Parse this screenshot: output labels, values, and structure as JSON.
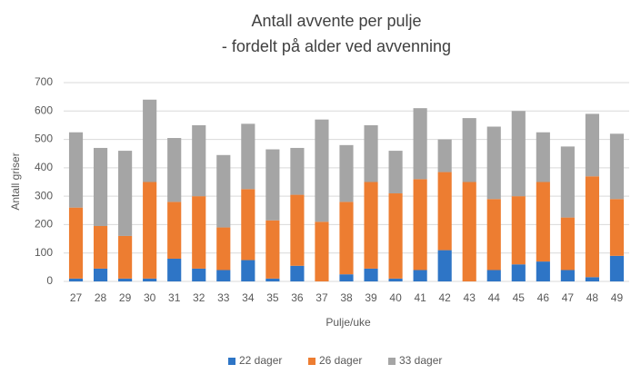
{
  "chart_data": {
    "type": "stacked_bar",
    "title": [
      "Antall avvente per pulje",
      "- fordelt på alder ved avvenning"
    ],
    "x_label": "Pulje/uke",
    "y_label": "Antall griser",
    "categories": [
      "27",
      "28",
      "29",
      "30",
      "31",
      "32",
      "33",
      "34",
      "35",
      "36",
      "37",
      "38",
      "39",
      "40",
      "41",
      "42",
      "43",
      "44",
      "45",
      "46",
      "47",
      "48",
      "49"
    ],
    "series": [
      {
        "name": "22 dager",
        "color": "#2e75c6",
        "values": [
          10,
          45,
          10,
          10,
          80,
          45,
          40,
          75,
          10,
          55,
          0,
          25,
          45,
          10,
          40,
          110,
          0,
          40,
          60,
          70,
          40,
          15,
          90
        ]
      },
      {
        "name": "26 dager",
        "color": "#ed7d31",
        "values": [
          250,
          150,
          150,
          340,
          200,
          255,
          150,
          250,
          205,
          250,
          210,
          255,
          305,
          300,
          320,
          275,
          350,
          250,
          240,
          280,
          185,
          355,
          200
        ]
      },
      {
        "name": "33 dager",
        "color": "#a5a5a5",
        "values": [
          265,
          275,
          300,
          290,
          225,
          250,
          255,
          230,
          250,
          165,
          360,
          200,
          200,
          150,
          250,
          115,
          225,
          255,
          300,
          175,
          250,
          220,
          230
        ]
      }
    ],
    "ylim": [
      0,
      700
    ],
    "yticks": [
      0,
      100,
      200,
      300,
      400,
      500,
      600,
      700
    ],
    "grid": true,
    "legend": "bottom"
  }
}
